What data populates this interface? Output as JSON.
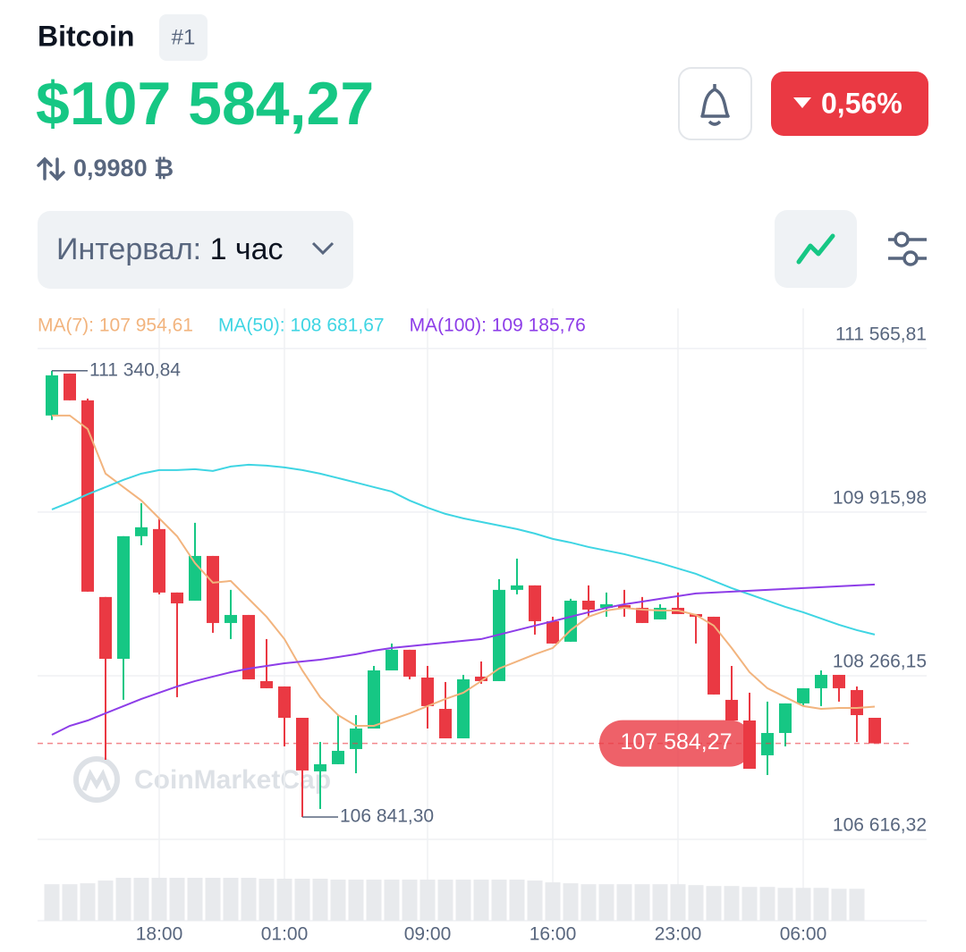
{
  "header": {
    "title": "Bitcoin",
    "rank": "#1",
    "price": "$107 584,27",
    "btc": "0,9980 ₿",
    "change": "0,56%"
  },
  "controls": {
    "interval_label": "Интервал:",
    "interval_value": "1 час"
  },
  "watermark": "CoinMarketCap",
  "chart_data": {
    "type": "candlestick",
    "categories": [
      null,
      null,
      null,
      null,
      null,
      null,
      "18:00",
      null,
      null,
      null,
      null,
      null,
      null,
      "01:00",
      null,
      null,
      null,
      null,
      null,
      null,
      null,
      "09:00",
      null,
      null,
      null,
      null,
      null,
      null,
      "16:00",
      null,
      null,
      null,
      null,
      null,
      null,
      "23:00",
      null,
      null,
      null,
      null,
      null,
      null,
      "06:00",
      null,
      null,
      null,
      null
    ],
    "ohlc": [
      [
        110890,
        111340.84,
        110845,
        111295
      ],
      [
        111313,
        111313,
        111043,
        111043
      ],
      [
        111043,
        111061,
        109114,
        109114
      ],
      [
        109060,
        109060,
        107419,
        108437
      ],
      [
        108437,
        109673,
        108023,
        109673
      ],
      [
        109673,
        110006,
        109582,
        109763
      ],
      [
        109745,
        109853,
        109087,
        109105
      ],
      [
        109105,
        109105,
        108050,
        108996
      ],
      [
        109023,
        109808,
        109023,
        109474
      ],
      [
        109474,
        109474,
        108699,
        108798
      ],
      [
        108798,
        109132,
        108636,
        108879
      ],
      [
        108879,
        108879,
        108230,
        108230
      ],
      [
        108212,
        108636,
        108140,
        108140
      ],
      [
        108158,
        108158,
        107554,
        107842
      ],
      [
        107842,
        107842,
        106841.3,
        107311
      ],
      [
        107302,
        107599,
        106923,
        107374
      ],
      [
        107374,
        107869,
        107374,
        107509
      ],
      [
        107527,
        107869,
        107283,
        107734
      ],
      [
        107734,
        108365,
        107734,
        108320
      ],
      [
        108320,
        108591,
        108320,
        108528
      ],
      [
        108528,
        108528,
        108230,
        108257
      ],
      [
        108248,
        108365,
        107734,
        107960
      ],
      [
        107932,
        108203,
        107635,
        107635
      ],
      [
        107635,
        108275,
        107635,
        108230
      ],
      [
        108257,
        108410,
        108185,
        108212
      ],
      [
        108212,
        109240,
        108212,
        109132
      ],
      [
        109132,
        109447,
        109087,
        109177
      ],
      [
        109177,
        109177,
        108681,
        108816
      ],
      [
        108816,
        108861,
        108591,
        108591
      ],
      [
        108609,
        109042,
        108609,
        109023
      ],
      [
        109023,
        109177,
        108861,
        108933
      ],
      [
        108951,
        109105,
        108861,
        108987
      ],
      [
        108978,
        109132,
        108861,
        108942
      ],
      [
        108951,
        109060,
        108798,
        108798
      ],
      [
        108834,
        108987,
        108834,
        108951
      ],
      [
        108951,
        109105,
        108888,
        108888
      ],
      [
        108888,
        108888,
        108591,
        108861
      ],
      [
        108861,
        108861,
        108077,
        108077
      ],
      [
        108023,
        108365,
        107815,
        107815
      ],
      [
        107815,
        108095,
        107328,
        107328
      ],
      [
        107464,
        108005,
        107265,
        107689
      ],
      [
        107689,
        107987,
        107554,
        107987
      ],
      [
        107987,
        108140,
        107960,
        108140
      ],
      [
        108140,
        108320,
        107960,
        108275
      ],
      [
        108275,
        108275,
        108005,
        108140
      ],
      [
        108122,
        108158,
        107599,
        107869
      ],
      [
        107842,
        107842,
        107584.27,
        107584.27
      ]
    ],
    "up_color": "#16c784",
    "down_color": "#ea3943",
    "lines": [
      {
        "name": "MA(7): 107 954,61",
        "color": "#f2b47e",
        "values": [
          110890,
          110890,
          110754,
          110304,
          110168,
          110033,
          109853,
          109673,
          109402,
          109204,
          109222,
          109042,
          108861,
          108636,
          108320,
          108050,
          107869,
          107761,
          107761,
          107824,
          107887,
          107960,
          108032,
          108095,
          108212,
          108339,
          108410,
          108483,
          108546,
          108726,
          108861,
          108924,
          108951,
          108933,
          108924,
          108924,
          108879,
          108771,
          108546,
          108302,
          108140,
          108050,
          107960,
          107932,
          107941,
          107941,
          107954.61
        ]
      },
      {
        "name": "MA(50): 108 681,67",
        "color": "#3fd5e3",
        "values": [
          109943,
          110015,
          110096,
          110168,
          110241,
          110304,
          110340,
          110340,
          110349,
          110331,
          110376,
          110394,
          110385,
          110367,
          110340,
          110304,
          110259,
          110214,
          110168,
          110123,
          110033,
          109961,
          109898,
          109853,
          109817,
          109781,
          109745,
          109700,
          109646,
          109609,
          109564,
          109528,
          109492,
          109447,
          109402,
          109348,
          109294,
          109222,
          109150,
          109087,
          109023,
          108960,
          108906,
          108843,
          108780,
          108726,
          108681.67
        ]
      },
      {
        "name": "MA(100): 109 185,76",
        "color": "#8d3de8",
        "values": [
          107671,
          107761,
          107815,
          107888,
          107960,
          108032,
          108095,
          108158,
          108212,
          108257,
          108302,
          108338,
          108365,
          108392,
          108410,
          108428,
          108455,
          108483,
          108519,
          108546,
          108564,
          108582,
          108600,
          108618,
          108636,
          108681,
          108726,
          108771,
          108816,
          108861,
          108906,
          108951,
          108987,
          109014,
          109042,
          109069,
          109096,
          109105,
          109114,
          109123,
          109132,
          109141,
          109150,
          109159,
          109168,
          109177,
          109185.76
        ]
      }
    ],
    "volume": [
      40,
      40,
      41,
      44,
      47,
      47,
      47,
      47,
      47,
      47,
      47,
      47,
      46,
      46,
      46,
      46,
      45,
      45,
      45,
      45,
      45,
      45,
      45,
      45,
      45,
      45,
      45,
      44,
      42,
      41,
      40,
      40,
      40,
      40,
      40,
      40,
      39,
      38,
      38,
      37,
      37,
      36,
      36,
      36,
      35,
      35,
      null
    ],
    "volume_color": "#e8eaed",
    "ylim": [
      106616.32,
      111970
    ],
    "yticks": [
      {
        "value": 106616.32,
        "label": "106 616,32"
      },
      {
        "value": 108266.15,
        "label": "108 266,15"
      },
      {
        "value": 109915.98,
        "label": "109 915,98"
      },
      {
        "value": 111565.81,
        "label": "111 565,81"
      }
    ],
    "grid": true,
    "annotations": [
      {
        "value": 111340.84,
        "label": "111 340,84"
      },
      {
        "value": 106841.3,
        "label": "106 841,30"
      }
    ],
    "last_price": {
      "value": 107584.27,
      "label": "107 584,27"
    }
  }
}
